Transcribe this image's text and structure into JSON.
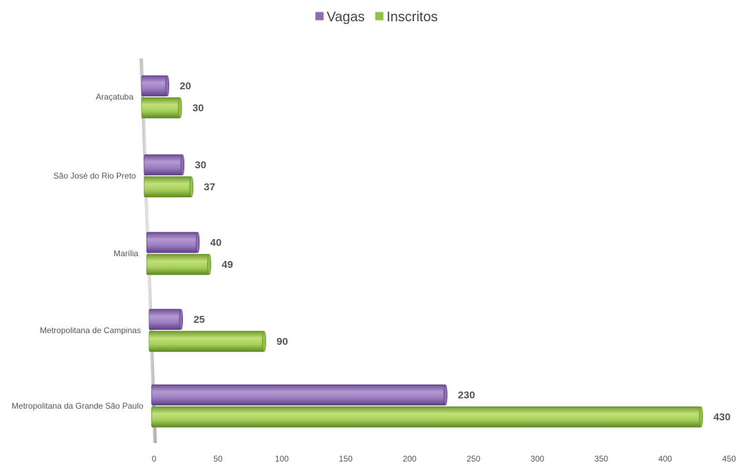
{
  "chart_data": {
    "type": "bar",
    "orientation": "horizontal",
    "categories": [
      "Araçatuba",
      "São José do Rio Preto",
      "Marília",
      "Metropolitana de Campinas",
      "Metropolitana da Grande São Paulo"
    ],
    "series": [
      {
        "name": "Vagas",
        "values": [
          20,
          30,
          40,
          25,
          230
        ],
        "color": "#8e6bb3"
      },
      {
        "name": "Inscritos",
        "values": [
          30,
          37,
          49,
          90,
          430
        ],
        "color": "#93c143"
      }
    ],
    "xlim": [
      0,
      450
    ],
    "xticks": [
      0,
      50,
      100,
      150,
      200,
      250,
      300,
      350,
      400,
      450
    ],
    "legend_position": "top-center",
    "grid": false
  }
}
